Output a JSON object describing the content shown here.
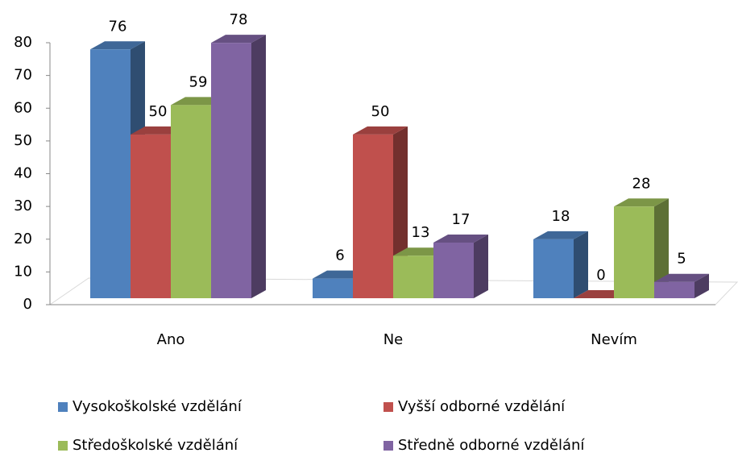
{
  "chart_data": {
    "type": "bar3d",
    "categories": [
      "Ano",
      "Ne",
      "Nevím"
    ],
    "series": [
      {
        "name": "Vysokoškolské vzdělání",
        "color": "#4f81bd",
        "values": [
          76,
          6,
          18
        ]
      },
      {
        "name": "Vyšší odborné vzdělání",
        "color": "#c0504d",
        "values": [
          50,
          50,
          0
        ]
      },
      {
        "name": "Středoškolské vzdělání",
        "color": "#9bbb59",
        "values": [
          59,
          13,
          28
        ]
      },
      {
        "name": "Středně odborné vzdělání",
        "color": "#8064a2",
        "values": [
          78,
          17,
          5
        ]
      }
    ],
    "ylim": [
      0,
      80
    ],
    "yticks": [
      0,
      10,
      20,
      30,
      40,
      50,
      60,
      70,
      80
    ],
    "legend": "bottom"
  }
}
